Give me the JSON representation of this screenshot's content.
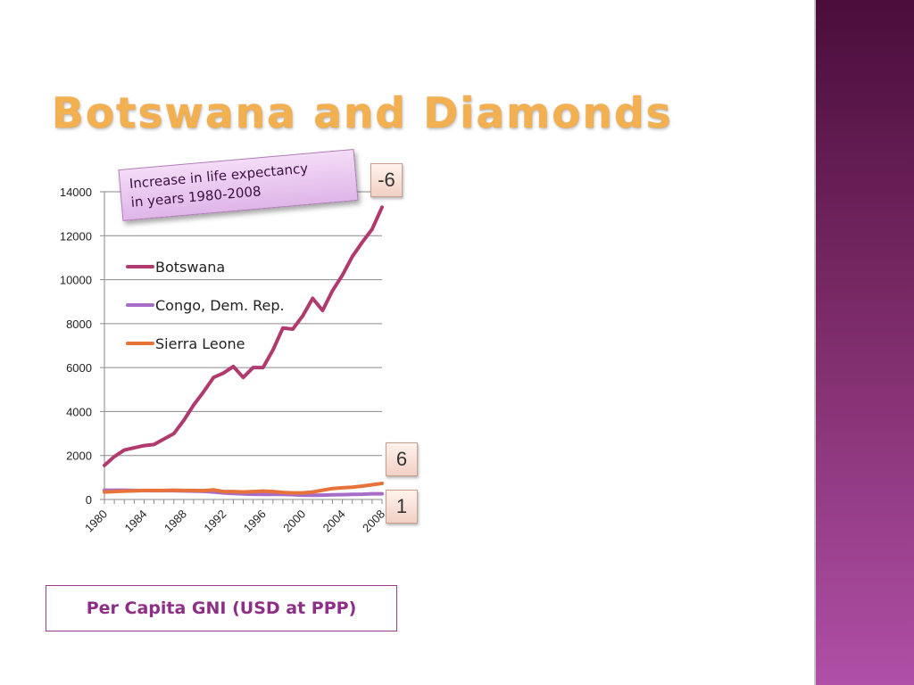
{
  "slide": {
    "title": "Botswana and Diamonds",
    "callout_line1": "Increase in life expectancy",
    "callout_line2": "in years 1980-2008",
    "badges": [
      {
        "label": "-6",
        "series": "Botswana"
      },
      {
        "label": "6",
        "series": "Sierra Leone"
      },
      {
        "label": "1",
        "series": "Congo, Dem. Rep."
      }
    ],
    "caption": "Per Capita GNI (USD at PPP)",
    "accent_color": "#f3b050",
    "sidebar_color": "#7a2a66"
  },
  "chart_data": {
    "type": "line",
    "x": [
      1980,
      1981,
      1982,
      1983,
      1984,
      1985,
      1986,
      1987,
      1988,
      1989,
      1990,
      1991,
      1992,
      1993,
      1994,
      1995,
      1996,
      1997,
      1998,
      1999,
      2000,
      2001,
      2002,
      2003,
      2004,
      2005,
      2006,
      2007,
      2008
    ],
    "x_tick_labels": [
      "1980",
      "1984",
      "1988",
      "1992",
      "1996",
      "2000",
      "2004",
      "2008"
    ],
    "ylim": [
      0,
      14000
    ],
    "y_ticks": [
      0,
      2000,
      4000,
      6000,
      8000,
      10000,
      12000,
      14000
    ],
    "grid": true,
    "legend_position": "upper-left inside plot",
    "series": [
      {
        "name": "Botswana",
        "color": "#b03a6e",
        "values": [
          1550,
          1950,
          2250,
          2350,
          2450,
          2500,
          2750,
          3000,
          3600,
          4300,
          4900,
          5550,
          5750,
          6050,
          5550,
          6000,
          6000,
          6800,
          7800,
          7750,
          8350,
          9150,
          8600,
          9500,
          10200,
          11050,
          11700,
          12300,
          13300
        ]
      },
      {
        "name": "Congo, Dem. Rep.",
        "color": "#a66cc7",
        "values": [
          420,
          420,
          420,
          410,
          400,
          400,
          400,
          400,
          390,
          380,
          370,
          340,
          300,
          270,
          250,
          240,
          230,
          230,
          230,
          220,
          200,
          190,
          200,
          210,
          220,
          230,
          240,
          260,
          260
        ]
      },
      {
        "name": "Sierra Leone",
        "color": "#e8733a",
        "values": [
          340,
          360,
          380,
          390,
          410,
          410,
          410,
          420,
          410,
          410,
          400,
          440,
          360,
          360,
          340,
          360,
          380,
          360,
          320,
          300,
          300,
          340,
          420,
          500,
          530,
          560,
          610,
          670,
          730
        ]
      }
    ]
  }
}
